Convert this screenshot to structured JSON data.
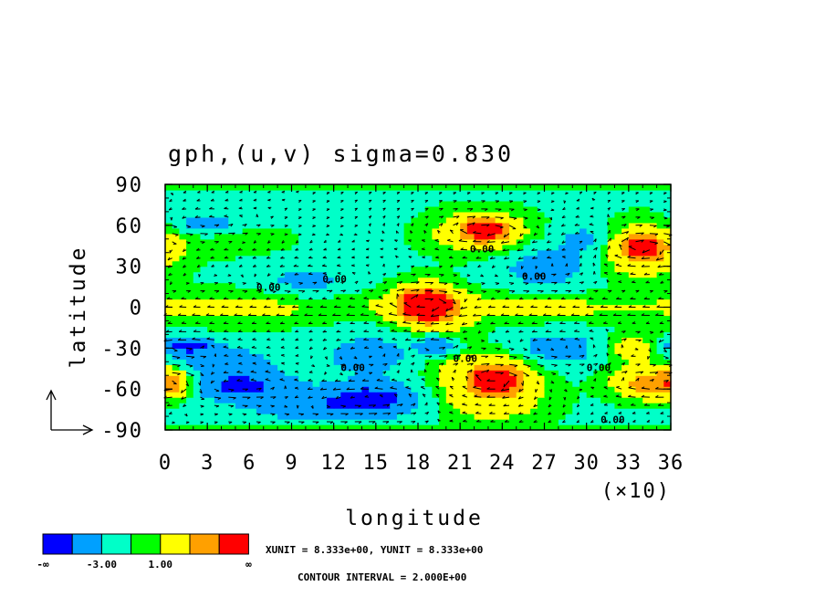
{
  "chart_data": {
    "type": "heatmap",
    "title": "gph,(u,v) sigma=0.830",
    "xlabel": "longitude",
    "ylabel": "latitude",
    "x_multiplier_label": "(×10)",
    "xlim": [
      0,
      36
    ],
    "ylim": [
      -90,
      90
    ],
    "x_ticks": [
      "0",
      "3",
      "6",
      "9",
      "12",
      "15",
      "18",
      "21",
      "24",
      "27",
      "30",
      "33",
      "36"
    ],
    "y_ticks": [
      "90",
      "60",
      "30",
      "0",
      "-30",
      "-60",
      "-90"
    ],
    "colorbar": {
      "colors": [
        "#0000ff",
        "#00a0ff",
        "#00ffc8",
        "#00ff00",
        "#ffff00",
        "#ffa000",
        "#ff0000"
      ],
      "labels": [
        "-∞",
        "-3.00",
        "1.00",
        "∞"
      ]
    },
    "contour_labels": [
      "0.00",
      "0.00",
      "0.00",
      "0.00",
      "0.00",
      "0.00",
      "0.00",
      "0.00"
    ],
    "blobs": [
      {
        "lon": 22.5,
        "lat": 55,
        "rlon": 3.2,
        "rlat": 14,
        "v": 3
      },
      {
        "lon": 22.8,
        "lat": 57,
        "rlon": 1.5,
        "rlat": 7,
        "v": 5
      },
      {
        "lon": 34,
        "lat": 42,
        "rlon": 2.8,
        "rlat": 18,
        "v": 3
      },
      {
        "lon": 34,
        "lat": 44,
        "rlon": 1.4,
        "rlat": 8,
        "v": 5
      },
      {
        "lon": 18.5,
        "lat": 2,
        "rlon": 2.2,
        "rlat": 14,
        "v": 5
      },
      {
        "lon": 18.5,
        "lat": 2,
        "rlon": 1.2,
        "rlat": 8,
        "v": 8
      },
      {
        "lon": 23.5,
        "lat": -52,
        "rlon": 2.8,
        "rlat": 16,
        "v": 4
      },
      {
        "lon": 23.5,
        "lat": -52,
        "rlon": 1.2,
        "rlat": 7,
        "v": 7
      },
      {
        "lon": 34.5,
        "lat": -55,
        "rlon": 2.5,
        "rlat": 11,
        "v": 4
      },
      {
        "lon": 33.5,
        "lat": -30,
        "rlon": 2.0,
        "rlat": 10,
        "v": 2
      },
      {
        "lon": 0.5,
        "lat": -55,
        "rlon": 1.5,
        "rlat": 10,
        "v": 3
      },
      {
        "lon": 24,
        "lat": 0,
        "rlon": 12,
        "rlat": 10,
        "v": 1.5
      },
      {
        "lon": 5,
        "lat": 0,
        "rlon": 6,
        "rlat": 12,
        "v": 1.3
      },
      {
        "lon": 4,
        "lat": 50,
        "rlon": 4,
        "rlat": 10,
        "v": 1.2
      },
      {
        "lon": 20,
        "lat": -25,
        "rlon": 2,
        "rlat": 30,
        "v": 1.2
      },
      {
        "lon": 23,
        "lat": -70,
        "rlon": 4,
        "rlat": 15,
        "v": 1.5
      },
      {
        "lon": 1.5,
        "lat": -28,
        "rlon": 2,
        "rlat": 6,
        "v": -3.5
      },
      {
        "lon": 5.5,
        "lat": -58,
        "rlon": 3.5,
        "rlat": 10,
        "v": -3.5
      },
      {
        "lon": 14.5,
        "lat": -65,
        "rlon": 3.5,
        "rlat": 10,
        "v": -3.5
      },
      {
        "lon": 19.5,
        "lat": -28,
        "rlon": 1.5,
        "rlat": 8,
        "v": -3.5
      },
      {
        "lon": 14.5,
        "lat": -35,
        "rlon": 3,
        "rlat": 15,
        "v": -2
      },
      {
        "lon": 27,
        "lat": 30,
        "rlon": 3,
        "rlat": 15,
        "v": -2
      },
      {
        "lon": 3,
        "lat": 60,
        "rlon": 2.5,
        "rlat": 10,
        "v": -2
      },
      {
        "lon": 10,
        "lat": 20,
        "rlon": 3,
        "rlat": 12,
        "v": -1.5
      },
      {
        "lon": 12,
        "lat": -75,
        "rlon": 6,
        "rlat": 10,
        "v": -2
      },
      {
        "lon": 28,
        "lat": -30,
        "rlon": 3,
        "rlat": 12,
        "v": -2
      },
      {
        "lon": 4,
        "lat": -40,
        "rlon": 4,
        "rlat": 12,
        "v": -2
      },
      {
        "lon": 30,
        "lat": 50,
        "rlon": 2,
        "rlat": 12,
        "v": -1.5
      }
    ]
  },
  "footer": {
    "units": "XUNIT = 8.333e+00, YUNIT = 8.333e+00",
    "contour_interval": "CONTOUR INTERVAL = 2.000E+00"
  }
}
